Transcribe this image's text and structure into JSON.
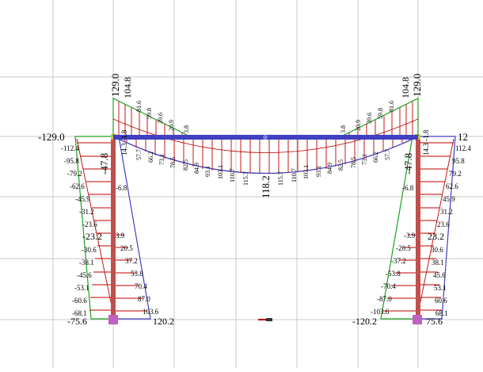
{
  "viewport": {
    "background": "#ffffff",
    "grid_color": "#c8c8c8",
    "frame_color": "#c0504d",
    "beam_color": "#4040c0",
    "positive_fill_color": "#2020c0",
    "negative_fill_color": "#20a020",
    "hatch_color": "#c00000",
    "node_color": "#e0c040",
    "support_color": "#c060c0"
  },
  "left_column": {
    "top_left_label": "-129.0",
    "top_beam_labels": [
      "129.0",
      "104.8"
    ],
    "side_labels_left": [
      "-112.4",
      "-95.8",
      "-79.2",
      "-62.6",
      "-45.9",
      "-31.2",
      "-23.6",
      "-23.2",
      "-30.6",
      "-38.1",
      "-45.6",
      "-53.1",
      "-60.6",
      "-68.1"
    ],
    "side_labels_right": [
      "-6.8",
      "3.9",
      "20.5",
      "37.2",
      "53.8",
      "70.4",
      "87.0",
      "103.6"
    ],
    "vertical_labels": [
      "-47.8",
      "14.3",
      "-1.8"
    ],
    "bottom_left_label": "-75.6",
    "bottom_right_label": "120.2"
  },
  "right_column": {
    "top_right_label": "12",
    "top_beam_labels": [
      "104.8",
      "129.0"
    ],
    "side_labels_right": [
      "112.4",
      "95.8",
      "79.2",
      "62.6",
      "45.9",
      "31.2",
      "23.6",
      "23.2",
      "30.6",
      "38.1",
      "45.6",
      "53.1",
      "60.6",
      "68.1"
    ],
    "side_labels_left": [
      "-6.8",
      "-3.9",
      "-20.5",
      "-37.2",
      "-53.8",
      "-70.4",
      "-87.0",
      "-103.6"
    ],
    "vertical_labels": [
      "-47.8",
      "14.3",
      "-1.8"
    ],
    "bottom_left_label": "-120.2",
    "bottom_right_label": "75.6"
  },
  "beam": {
    "left_labels": [
      "81.6",
      "59.8",
      "39.6",
      "20.9",
      "3.8"
    ],
    "right_labels": [
      "3.8",
      "20.9",
      "39.6",
      "59.8",
      "81.6"
    ],
    "lower_labels": [
      "57.7",
      "66.2",
      "73.1",
      "78.5",
      "82.5",
      "84.9",
      "93.1",
      "103.1",
      "110.7",
      "115.7",
      "118.2",
      "115.7",
      "110.7",
      "103.1",
      "93.1",
      "84.9",
      "82.5",
      "78.5",
      "73.1",
      "66.2",
      "57.7"
    ],
    "midspan_label": "118.2"
  }
}
